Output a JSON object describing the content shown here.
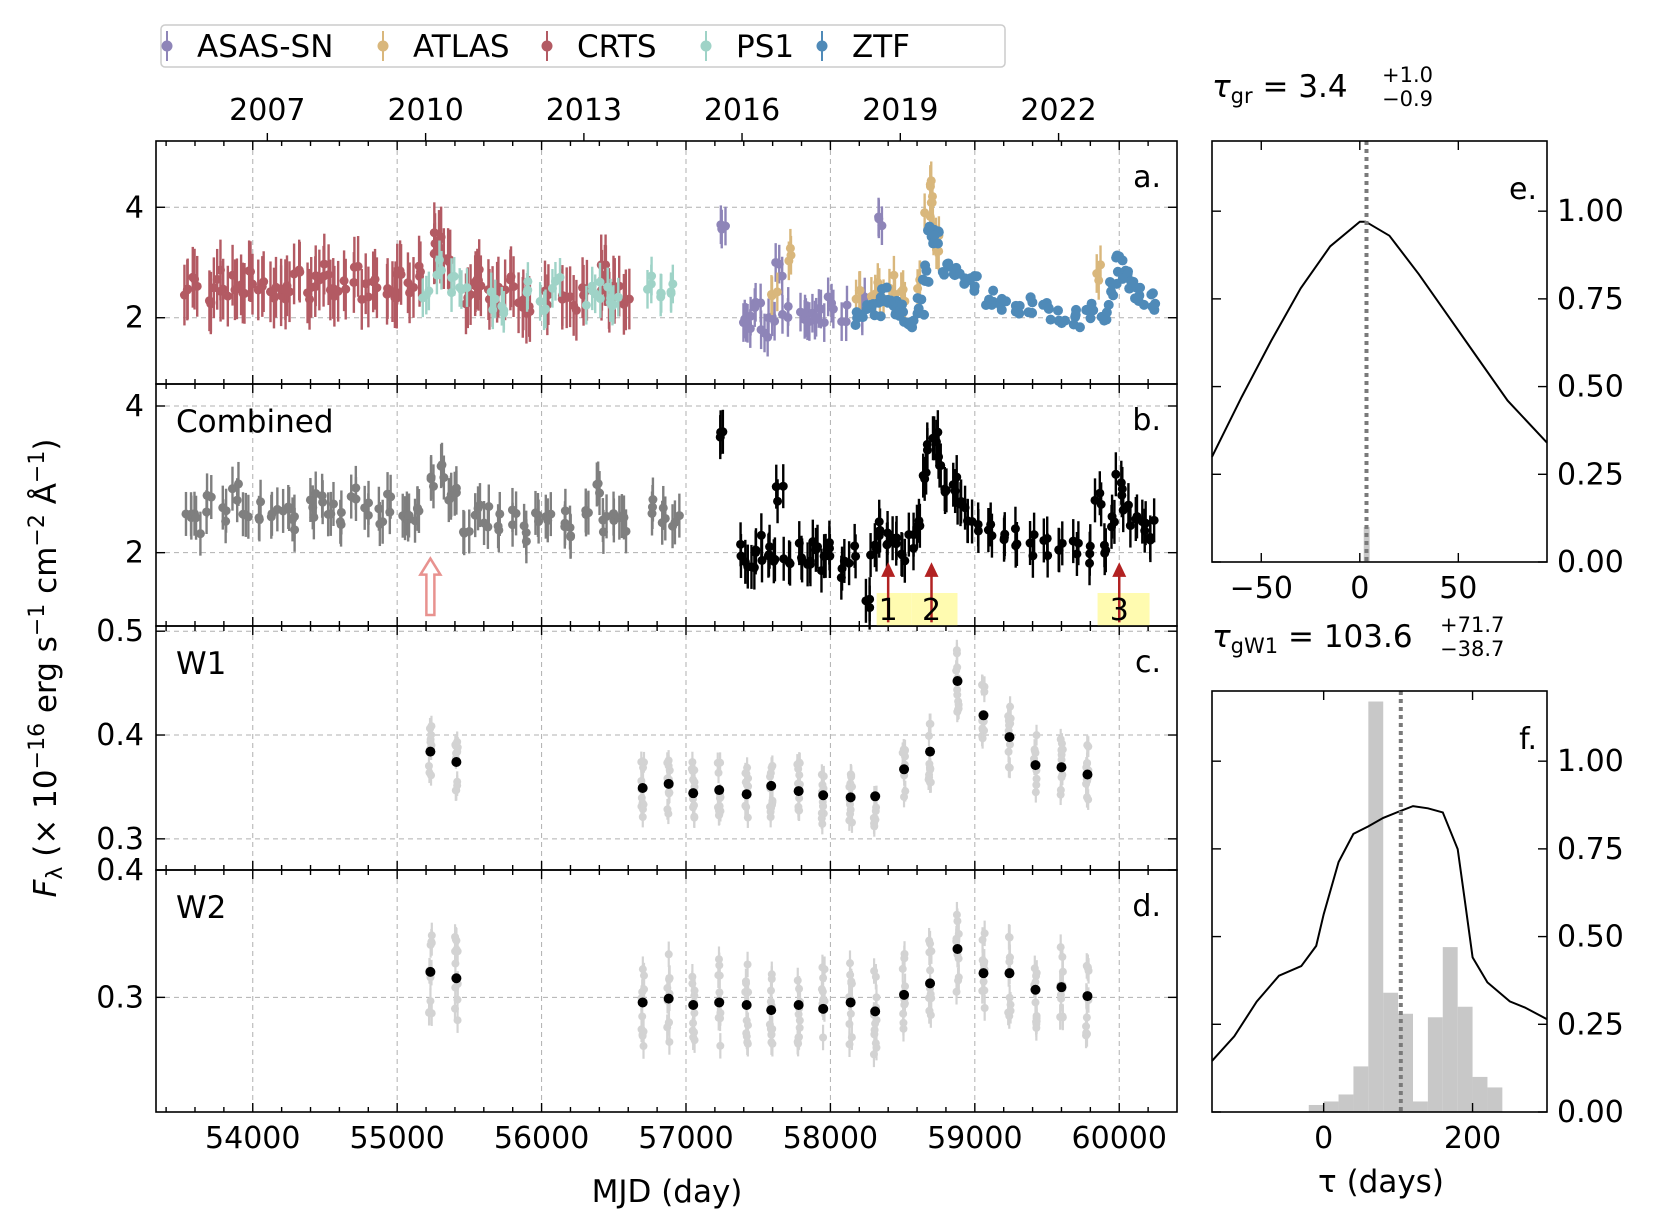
{
  "colors": {
    "ASAS-SN": "#8e85b8",
    "ATLAS": "#d9b77c",
    "CRTS": "#b35a63",
    "PS1": "#9fd3c7",
    "ZTF": "#4f8ab8",
    "combined_pre": "#7f7f7f",
    "combined_post": "#000000",
    "wise_epoch": "#d3d3d3",
    "wise_mean": "#000000",
    "flare_arrow": "#b22222",
    "flare_band": "#fffbb0",
    "hollow_arrow": "#e8928f",
    "lag_hist": "#c8c8c8",
    "lag_line": "#7a7a7a"
  },
  "legend": {
    "entries": [
      "ASAS-SN",
      "ATLAS",
      "CRTS",
      "PS1",
      "ZTF"
    ]
  },
  "axes": {
    "ylabel": "F_λ (× 10^−16 erg s^−1 cm^−2 Å^−1)",
    "xlabel": "MJD (day)",
    "lag_xlabel": "τ (days)",
    "year_ticks": [
      "2007",
      "2010",
      "2013",
      "2016",
      "2019",
      "2022"
    ],
    "mjd_ticks": [
      "54000",
      "55000",
      "56000",
      "57000",
      "58000",
      "59000",
      "60000"
    ]
  },
  "chart_data": [
    {
      "panel": "a",
      "type": "scatter",
      "title": "",
      "letter": "a.",
      "xlim": [
        53330,
        60400
      ],
      "ylim": [
        0.8,
        5.2
      ],
      "yticks": [
        "2",
        "4"
      ],
      "series": [
        {
          "name": "CRTS",
          "x": [
            53550,
            53610,
            53700,
            53750,
            53800,
            53880,
            53940,
            54000,
            54060,
            54150,
            54200,
            54240,
            54300,
            54390,
            54450,
            54520,
            54560,
            54620,
            54720,
            54780,
            54860,
            54950,
            54990,
            55030,
            55100,
            55180,
            55260,
            55280,
            55300,
            55350,
            55480,
            55540,
            55570,
            55650,
            55720,
            55800,
            55850,
            55920,
            56050,
            56150,
            56220,
            56300,
            56420,
            56440,
            56480,
            56520,
            56580
          ],
          "y": [
            2.5,
            2.6,
            2.4,
            2.7,
            2.5,
            2.6,
            2.5,
            2.7,
            2.6,
            2.5,
            2.4,
            2.6,
            2.7,
            2.5,
            2.6,
            2.8,
            2.4,
            2.6,
            2.8,
            2.5,
            2.7,
            2.6,
            2.5,
            2.7,
            2.5,
            2.9,
            3.2,
            3.4,
            3.1,
            2.9,
            2.4,
            2.6,
            2.7,
            2.5,
            2.5,
            2.6,
            2.3,
            2.2,
            2.4,
            2.5,
            2.3,
            2.5,
            2.8,
            2.6,
            2.4,
            2.5,
            2.3
          ]
        },
        {
          "name": "PS1",
          "x": [
            55200,
            55300,
            55380,
            55460,
            55660,
            55740,
            55900,
            56020,
            56100,
            56330,
            56400,
            56470,
            56520,
            56760,
            56850,
            56920
          ],
          "y": [
            2.4,
            2.9,
            2.6,
            2.6,
            2.3,
            2.2,
            2.6,
            2.3,
            2.6,
            2.4,
            2.5,
            2.4,
            2.3,
            2.6,
            2.5,
            2.5
          ]
        },
        {
          "name": "ASAS-SN",
          "x": [
            57250,
            57400,
            57450,
            57500,
            57550,
            57600,
            57650,
            57680,
            57800,
            57850,
            57900,
            57950,
            58000,
            58100,
            58250,
            58350
          ],
          "y": [
            3.6,
            2.0,
            1.9,
            2.2,
            1.8,
            2.0,
            2.9,
            2.1,
            2.0,
            1.9,
            2.1,
            2.0,
            2.3,
            2.1,
            2.2,
            3.8
          ]
        },
        {
          "name": "ATLAS",
          "x": [
            57620,
            57700,
            58200,
            58300,
            58350,
            58420,
            58500,
            58600,
            58680,
            58700,
            58720,
            58740,
            58760,
            59850
          ],
          "y": [
            2.4,
            3.2,
            2.4,
            2.5,
            2.4,
            2.6,
            2.4,
            2.6,
            3.8,
            4.5,
            4.2,
            3.6,
            3.2,
            2.8
          ]
        },
        {
          "name": "ZTF",
          "x": [
            58200,
            58260,
            58320,
            58380,
            58440,
            58500,
            58560,
            58620,
            58660,
            58700,
            58740,
            58800,
            58850,
            58920,
            59000,
            59100,
            59200,
            59300,
            59400,
            59500,
            59600,
            59700,
            59800,
            59900,
            59960,
            60000,
            60040,
            60100,
            60160,
            60220
          ],
          "y": [
            2.0,
            2.1,
            2.2,
            2.4,
            2.2,
            2.1,
            2.0,
            2.2,
            2.8,
            3.5,
            3.4,
            2.9,
            2.9,
            2.7,
            2.6,
            2.4,
            2.3,
            2.2,
            2.2,
            2.1,
            2.0,
            2.0,
            2.1,
            2.1,
            2.5,
            3.0,
            2.7,
            2.5,
            2.4,
            2.3
          ]
        }
      ]
    },
    {
      "panel": "b",
      "type": "scatter",
      "title": "Combined",
      "letter": "b.",
      "xlim": [
        53330,
        60400
      ],
      "ylim": [
        1.0,
        4.3
      ],
      "yticks": [
        "2",
        "4"
      ],
      "series": [
        {
          "name": "pre",
          "x": [
            53550,
            53620,
            53700,
            53800,
            53880,
            53950,
            54050,
            54150,
            54230,
            54300,
            54400,
            54460,
            54540,
            54600,
            54700,
            54780,
            54880,
            54950,
            55050,
            55100,
            55160,
            55250,
            55300,
            55350,
            55400,
            55480,
            55560,
            55620,
            55700,
            55800,
            55880,
            55960,
            56050,
            56150,
            56220,
            56300,
            56380,
            56440,
            56520,
            56580,
            56780,
            56860,
            56930
          ],
          "y": [
            2.5,
            2.4,
            2.7,
            2.5,
            2.8,
            2.5,
            2.6,
            2.5,
            2.7,
            2.4,
            2.6,
            2.7,
            2.6,
            2.5,
            2.8,
            2.6,
            2.5,
            2.7,
            2.6,
            2.5,
            2.7,
            2.9,
            3.1,
            2.8,
            2.8,
            2.4,
            2.6,
            2.5,
            2.4,
            2.5,
            2.3,
            2.5,
            2.4,
            2.5,
            2.3,
            2.5,
            2.8,
            2.4,
            2.5,
            2.4,
            2.6,
            2.5,
            2.5
          ]
        },
        {
          "name": "post",
          "x": [
            57250,
            57400,
            57450,
            57500,
            57550,
            57600,
            57650,
            57700,
            57800,
            57850,
            57900,
            57950,
            58000,
            58100,
            58150,
            58250,
            58300,
            58350,
            58400,
            58450,
            58500,
            58560,
            58620,
            58660,
            58690,
            58720,
            58760,
            58800,
            58850,
            58900,
            58950,
            59000,
            59100,
            59200,
            59300,
            59400,
            59500,
            59600,
            59700,
            59800,
            59850,
            59900,
            59960,
            60000,
            60040,
            60100,
            60160,
            60220
          ],
          "y": [
            3.6,
            2.0,
            1.9,
            2.1,
            1.9,
            2.0,
            2.8,
            2.0,
            2.0,
            1.9,
            2.1,
            1.9,
            2.0,
            1.8,
            2.0,
            1.4,
            2.1,
            2.3,
            2.2,
            2.2,
            2.0,
            2.1,
            2.4,
            3.0,
            3.5,
            3.6,
            3.3,
            2.9,
            2.9,
            2.7,
            2.5,
            2.4,
            2.3,
            2.3,
            2.2,
            2.1,
            2.1,
            2.0,
            2.1,
            2.0,
            2.8,
            2.1,
            2.5,
            3.0,
            2.7,
            2.5,
            2.4,
            2.3
          ]
        }
      ],
      "flares": [
        {
          "label": "1",
          "x": 58400
        },
        {
          "label": "2",
          "x": 58700
        },
        {
          "label": "3",
          "x": 60000
        }
      ],
      "hollow_arrow_x": 55230
    },
    {
      "panel": "c",
      "type": "scatter",
      "title": "W1",
      "letter": "c.",
      "xlim": [
        53330,
        60400
      ],
      "ylim": [
        0.27,
        0.505
      ],
      "yticks": [
        "0.3",
        "0.4",
        "0.5"
      ],
      "series": [
        {
          "name": "mean",
          "x": [
            55230,
            55410,
            56700,
            56880,
            57050,
            57230,
            57420,
            57590,
            57780,
            57950,
            58140,
            58310,
            58510,
            58690,
            58880,
            59060,
            59240,
            59420,
            59600,
            59780
          ],
          "y": [
            0.384,
            0.374,
            0.349,
            0.353,
            0.344,
            0.347,
            0.343,
            0.351,
            0.346,
            0.342,
            0.34,
            0.341,
            0.367,
            0.384,
            0.452,
            0.419,
            0.398,
            0.371,
            0.369,
            0.362
          ]
        }
      ]
    },
    {
      "panel": "d",
      "type": "scatter",
      "title": "W2",
      "letter": "d.",
      "xlim": [
        53330,
        60400
      ],
      "ylim": [
        0.21,
        0.4
      ],
      "yticks": [
        "0.3",
        "0.4"
      ],
      "series": [
        {
          "name": "mean",
          "x": [
            55230,
            55410,
            56700,
            56880,
            57050,
            57230,
            57420,
            57590,
            57780,
            57950,
            58140,
            58310,
            58510,
            58690,
            58880,
            59060,
            59240,
            59420,
            59600,
            59780
          ],
          "y": [
            0.32,
            0.315,
            0.296,
            0.299,
            0.294,
            0.296,
            0.294,
            0.29,
            0.294,
            0.291,
            0.296,
            0.289,
            0.302,
            0.311,
            0.338,
            0.319,
            0.319,
            0.306,
            0.308,
            0.301
          ]
        }
      ]
    },
    {
      "panel": "e",
      "type": "line",
      "title": "τ_gr = 3.4 +1.0 −0.9",
      "tau": "3.4",
      "tau_plus": "+1.0",
      "tau_minus": "−0.9",
      "sub": "gr",
      "letter": "e.",
      "xlim": [
        -75,
        95
      ],
      "ylim": [
        0.0,
        1.2
      ],
      "xticks": [
        "−50",
        "0",
        "50"
      ],
      "yticks": [
        "0.00",
        "0.25",
        "0.50",
        "0.75",
        "1.00"
      ],
      "ccf": {
        "x": [
          -75,
          -60,
          -45,
          -30,
          -15,
          0,
          3,
          15,
          30,
          45,
          60,
          75,
          95
        ],
        "y": [
          0.3,
          0.47,
          0.63,
          0.78,
          0.9,
          0.97,
          0.97,
          0.93,
          0.82,
          0.7,
          0.58,
          0.46,
          0.34
        ]
      },
      "peak": 3.4
    },
    {
      "panel": "f",
      "type": "line",
      "title": "τ_gW1 = 103.6 +71.7 −38.7",
      "tau": "103.6",
      "tau_plus": "+71.7",
      "tau_minus": "−38.7",
      "sub": "gW1",
      "letter": "f.",
      "xlim": [
        -150,
        300
      ],
      "ylim": [
        0.0,
        1.2
      ],
      "xticks": [
        "0",
        "200"
      ],
      "yticks": [
        "0.00",
        "0.25",
        "0.50",
        "0.75",
        "1.00"
      ],
      "ccf": {
        "x": [
          -150,
          -120,
          -90,
          -60,
          -30,
          -10,
          0,
          20,
          40,
          60,
          80,
          100,
          120,
          140,
          160,
          180,
          190,
          200,
          220,
          250,
          270,
          300
        ],
        "y": [
          0.16,
          0.22,
          0.3,
          0.38,
          0.42,
          0.46,
          0.55,
          0.72,
          0.78,
          0.8,
          0.84,
          0.86,
          0.88,
          0.87,
          0.85,
          0.76,
          0.6,
          0.45,
          0.38,
          0.33,
          0.3,
          0.26
        ]
      },
      "hist": {
        "edges": [
          -20,
          0,
          20,
          40,
          60,
          80,
          100,
          120,
          140,
          160,
          180,
          200,
          220,
          240
        ],
        "counts": [
          0.02,
          0.03,
          0.05,
          0.13,
          1.17,
          0.34,
          0.28,
          0.03,
          0.27,
          0.47,
          0.3,
          0.1,
          0.07
        ]
      },
      "peak": 103.6
    }
  ]
}
